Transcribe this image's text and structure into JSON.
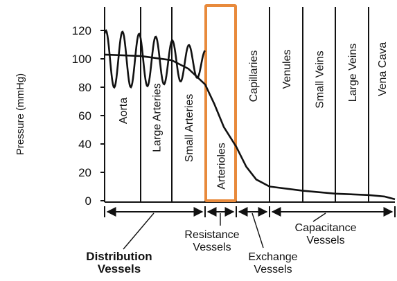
{
  "chart_data": {
    "type": "line",
    "ylabel": "Pressure  (mmHg)",
    "ylim": [
      0,
      130
    ],
    "y_ticks": [
      0,
      20,
      40,
      60,
      80,
      100,
      120
    ],
    "segments": [
      "Aorta",
      "Large Arteries",
      "Small Arteries",
      "Arterioles",
      "Capillaries",
      "Venules",
      "Small Veins",
      "Large Veins",
      "Vena Cava"
    ],
    "highlighted_segment": "Arterioles",
    "series": [
      {
        "curve": "pulsatile",
        "oscillation_min_mmHg": 80,
        "oscillation_max_mmHg": 120
      },
      {
        "curve": "mean",
        "x_segment_positions": [
          0.0,
          1.0,
          2.0,
          2.5,
          3.0,
          3.3,
          3.6,
          4.0,
          4.3,
          4.6,
          5.0,
          6.0,
          7.0,
          8.0,
          8.6,
          9.0
        ],
        "values_mmHg": [
          103,
          102,
          99,
          93,
          82,
          68,
          52,
          38,
          24,
          15,
          10,
          7,
          5,
          4,
          3,
          1
        ]
      }
    ],
    "groups": [
      {
        "line1": "Distribution",
        "line2": "Vessels",
        "bold": true
      },
      {
        "line1": "Resistance",
        "line2": "Vessels",
        "bold": false
      },
      {
        "line1": "Exchange",
        "line2": "Vessels",
        "bold": false
      },
      {
        "line1": "Capacitance",
        "line2": "Vessels",
        "bold": false
      }
    ],
    "colors": {
      "line": "#111111",
      "highlight": "#e88a3c"
    }
  }
}
